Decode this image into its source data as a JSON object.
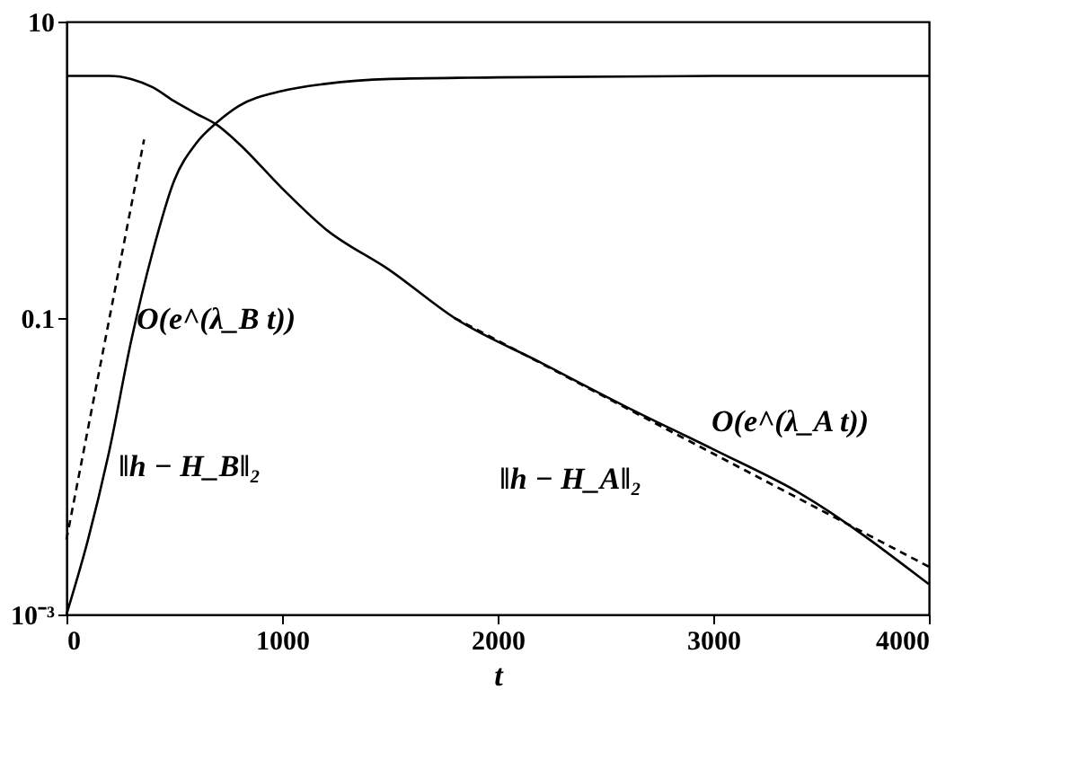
{
  "chart_data": {
    "type": "line",
    "xlabel": "t",
    "log": "y",
    "grid": false,
    "marker": "none",
    "xlim": [
      0,
      4000
    ],
    "xticks": [
      0,
      1000,
      2000,
      3000,
      4000
    ],
    "ylim": [
      0.001,
      10
    ],
    "yticks": [
      10,
      0.1,
      {
        "value": 0.001,
        "label": "10⁻³"
      }
    ],
    "series": [
      {
        "color": "#000000",
        "line_style": "solid",
        "x": [
          0,
          200,
          300,
          400,
          500,
          600,
          700,
          800,
          1000,
          1200,
          1500,
          1800,
          2200,
          2600,
          3000,
          3400,
          4000
        ],
        "values": [
          4.3,
          4.3,
          4.1,
          3.6,
          2.9,
          2.4,
          2.0,
          1.5,
          0.75,
          0.4,
          0.21,
          0.1,
          0.05,
          0.025,
          0.013,
          0.0066,
          0.0016
        ]
      },
      {
        "color": "#000000",
        "line_style": "solid",
        "x": [
          0,
          100,
          200,
          300,
          400,
          500,
          600,
          700,
          800,
          1000,
          1200,
          1500,
          2000,
          3000,
          4000
        ],
        "values": [
          0.001,
          0.0032,
          0.013,
          0.07,
          0.28,
          0.85,
          1.5,
          2.1,
          2.7,
          3.4,
          3.8,
          4.1,
          4.2,
          4.3,
          4.3
        ]
      },
      {
        "color": "#000000",
        "line_style": "dashed",
        "x": [
          0,
          360
        ],
        "values": [
          0.0032,
          1.6
        ]
      },
      {
        "color": "#000000",
        "line_style": "dashed",
        "x": [
          1800,
          4000
        ],
        "values": [
          0.1,
          0.0021
        ]
      }
    ],
    "annotations": [
      "O(e^(λ_B t))",
      "‖h − H_B‖₂",
      "‖h − H_A‖₂",
      "O(e^(λ_A t))"
    ]
  }
}
